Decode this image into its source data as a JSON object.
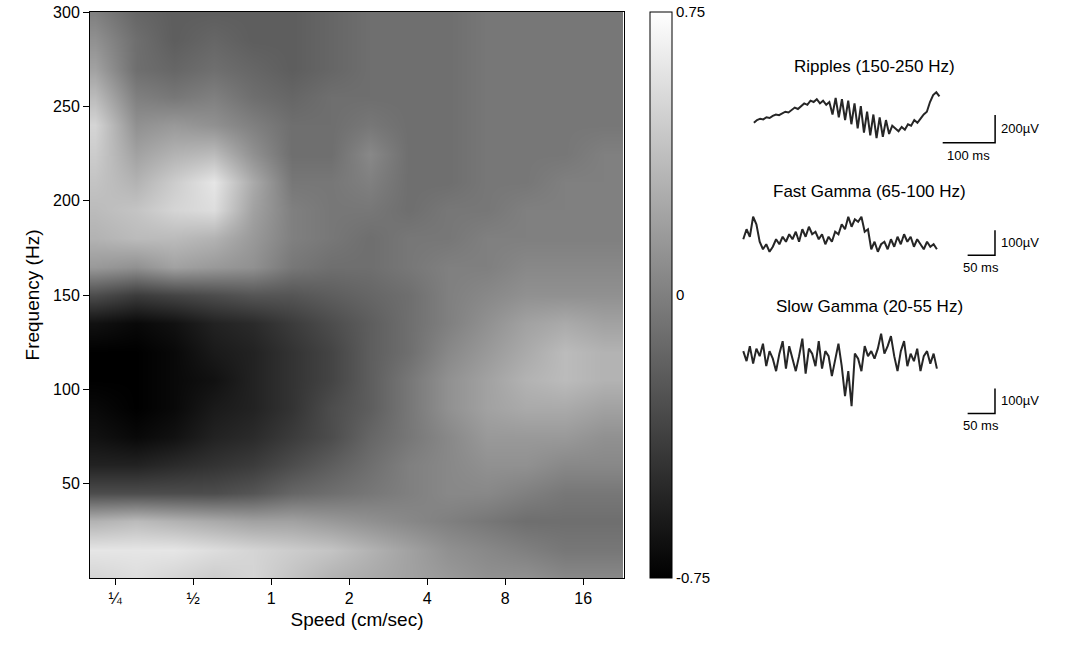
{
  "chart_data": [
    {
      "type": "heatmap",
      "x_label": "Speed (cm/sec)",
      "y_label": "Frequency (Hz)",
      "log": "x",
      "grid": false,
      "xlim": [
        0.2,
        23
      ],
      "xticks": [
        {
          "value": 0.25,
          "label": "¼"
        },
        {
          "value": 0.5,
          "label": "½"
        },
        1,
        2,
        4,
        8,
        16
      ],
      "ylim": [
        0,
        300
      ],
      "yticks": [
        50,
        100,
        150,
        200,
        250,
        300
      ],
      "zlim": [
        -0.75,
        0.75
      ],
      "zticks": [
        -0.75,
        0,
        0.75
      ],
      "x": [
        0.21,
        0.3,
        0.42,
        0.6,
        0.85,
        1.2,
        1.7,
        2.4,
        3.4,
        4.8,
        6.8,
        9.6,
        13.6,
        19.2
      ],
      "y": [
        0,
        15,
        30,
        45,
        60,
        75,
        90,
        105,
        120,
        135,
        150,
        165,
        180,
        195,
        210,
        225,
        240,
        255,
        270,
        285,
        300
      ],
      "z": [
        [
          0.5,
          0.55,
          0.5,
          0.45,
          0.5,
          0.4,
          0.3,
          0.25,
          0.2,
          0.15,
          0.1,
          0.1,
          0.05,
          0.05
        ],
        [
          0.6,
          0.6,
          0.6,
          0.55,
          0.5,
          0.45,
          0.4,
          0.3,
          0.2,
          0.1,
          0.05,
          0,
          -0.05,
          -0.05
        ],
        [
          0.3,
          0.35,
          0.3,
          0.25,
          0.2,
          0.2,
          0.15,
          0.1,
          0.05,
          0,
          -0.05,
          -0.1,
          -0.1,
          -0.1
        ],
        [
          -0.3,
          -0.3,
          -0.3,
          -0.3,
          -0.25,
          -0.15,
          -0.1,
          -0.05,
          0,
          0.05,
          0.05,
          0,
          -0.05,
          -0.05
        ],
        [
          -0.55,
          -0.55,
          -0.5,
          -0.45,
          -0.4,
          -0.3,
          -0.2,
          -0.1,
          0,
          0.05,
          0.1,
          0.1,
          0.05,
          0.05
        ],
        [
          -0.65,
          -0.7,
          -0.65,
          -0.55,
          -0.5,
          -0.4,
          -0.3,
          -0.15,
          -0.05,
          0.05,
          0.15,
          0.15,
          0.15,
          0.1
        ],
        [
          -0.7,
          -0.75,
          -0.7,
          -0.6,
          -0.55,
          -0.45,
          -0.3,
          -0.2,
          -0.05,
          0.1,
          0.2,
          0.25,
          0.25,
          0.2
        ],
        [
          -0.75,
          -0.75,
          -0.7,
          -0.65,
          -0.55,
          -0.45,
          -0.35,
          -0.2,
          -0.05,
          0.1,
          0.2,
          0.3,
          0.35,
          0.3
        ],
        [
          -0.75,
          -0.75,
          -0.7,
          -0.6,
          -0.55,
          -0.45,
          -0.35,
          -0.2,
          -0.1,
          0.05,
          0.15,
          0.25,
          0.35,
          0.3
        ],
        [
          -0.65,
          -0.7,
          -0.65,
          -0.55,
          -0.5,
          -0.4,
          -0.3,
          -0.2,
          -0.1,
          0,
          0.1,
          0.2,
          0.25,
          0.2
        ],
        [
          -0.3,
          -0.4,
          -0.35,
          -0.3,
          -0.25,
          -0.25,
          -0.2,
          -0.15,
          -0.1,
          0,
          0.05,
          0.1,
          0.1,
          0.1
        ],
        [
          0.15,
          0.1,
          0.2,
          0.15,
          0.1,
          -0.05,
          -0.1,
          -0.1,
          -0.05,
          0,
          0,
          0.05,
          0.05,
          0.05
        ],
        [
          0.3,
          0.35,
          0.35,
          0.3,
          0.15,
          0,
          -0.05,
          -0.1,
          -0.05,
          -0.05,
          0,
          0,
          0,
          0
        ],
        [
          0.35,
          0.4,
          0.5,
          0.55,
          0.2,
          0,
          -0.05,
          -0.05,
          -0.1,
          -0.05,
          -0.05,
          0,
          0,
          0
        ],
        [
          0.4,
          0.3,
          0.45,
          0.6,
          0.25,
          -0.05,
          -0.05,
          0,
          -0.1,
          -0.1,
          -0.05,
          -0.05,
          0,
          0
        ],
        [
          0.45,
          0.2,
          0.3,
          0.35,
          0.1,
          -0.1,
          -0.1,
          0.05,
          -0.1,
          -0.1,
          -0.05,
          -0.05,
          -0.05,
          0
        ],
        [
          0.5,
          0.1,
          0.15,
          0.1,
          0,
          -0.1,
          -0.1,
          -0.05,
          -0.1,
          -0.1,
          -0.05,
          -0.05,
          -0.05,
          -0.05
        ],
        [
          0.35,
          0,
          -0.05,
          0,
          -0.1,
          -0.15,
          -0.1,
          -0.1,
          -0.1,
          -0.1,
          -0.05,
          -0.05,
          -0.05,
          -0.05
        ],
        [
          0.2,
          -0.1,
          -0.15,
          -0.1,
          -0.15,
          -0.2,
          -0.15,
          -0.1,
          -0.1,
          -0.1,
          -0.05,
          -0.05,
          -0.05,
          -0.05
        ],
        [
          0.1,
          -0.1,
          -0.2,
          -0.15,
          -0.2,
          -0.2,
          -0.15,
          -0.1,
          -0.1,
          -0.1,
          -0.05,
          -0.05,
          -0.05,
          -0.05
        ],
        [
          0,
          -0.15,
          -0.2,
          -0.2,
          -0.2,
          -0.2,
          -0.15,
          -0.1,
          -0.1,
          -0.1,
          -0.05,
          -0.05,
          -0.05,
          -0.05
        ]
      ]
    },
    {
      "type": "line",
      "title": "Ripples (150-250 Hz)",
      "tick_labels": false,
      "color": "#262626",
      "scale_bar": {
        "x": 100,
        "x_label": "100 ms",
        "y": 200,
        "y_label": "200µV"
      },
      "x": [
        0,
        6,
        12,
        18,
        24,
        30,
        36,
        42,
        48,
        54,
        60,
        66,
        72,
        78,
        84,
        90,
        96,
        102,
        108,
        114,
        120,
        126,
        132,
        138,
        144,
        150,
        156,
        162,
        168,
        174,
        180,
        186,
        192,
        198,
        204,
        210,
        216,
        222,
        228,
        234,
        240,
        246,
        252,
        258,
        264,
        270,
        276,
        282,
        288,
        294,
        300,
        306,
        312,
        318,
        324,
        330,
        336,
        342,
        348,
        354
      ],
      "values": [
        -20,
        0,
        10,
        5,
        20,
        15,
        30,
        40,
        35,
        50,
        60,
        55,
        70,
        90,
        80,
        100,
        120,
        110,
        140,
        130,
        150,
        120,
        140,
        110,
        130,
        40,
        160,
        20,
        150,
        0,
        140,
        -30,
        120,
        -60,
        100,
        -90,
        60,
        -110,
        40,
        -130,
        20,
        -120,
        0,
        -100,
        -40,
        -60,
        -80,
        -50,
        -70,
        -30,
        -40,
        0,
        -20,
        10,
        40,
        60,
        130,
        180,
        200,
        170
      ]
    },
    {
      "type": "line",
      "title": "Fast Gamma (65-100 Hz)",
      "tick_labels": false,
      "color": "#262626",
      "scale_bar": {
        "x": 50,
        "x_label": "50 ms",
        "y": 100,
        "y_label": "100µV"
      },
      "x": [
        0,
        6,
        12,
        18,
        24,
        30,
        36,
        42,
        48,
        54,
        60,
        66,
        72,
        78,
        84,
        90,
        96,
        102,
        108,
        114,
        120,
        126,
        132,
        138,
        144,
        150,
        156,
        162,
        168,
        174,
        180,
        186,
        192,
        198,
        204,
        210,
        216,
        222,
        228,
        234,
        240,
        246,
        252,
        258,
        264,
        270,
        276,
        282,
        288,
        294,
        300,
        306,
        312,
        318,
        324,
        330,
        336,
        342,
        348,
        354
      ],
      "values": [
        0,
        40,
        10,
        90,
        60,
        -10,
        -40,
        -20,
        -50,
        -30,
        0,
        -20,
        10,
        -10,
        20,
        0,
        30,
        -10,
        40,
        10,
        50,
        20,
        30,
        0,
        20,
        -20,
        10,
        -10,
        30,
        20,
        60,
        40,
        90,
        50,
        80,
        70,
        90,
        30,
        40,
        -40,
        -10,
        -50,
        -20,
        -10,
        -40,
        0,
        -30,
        10,
        -20,
        20,
        -10,
        10,
        -30,
        0,
        -20,
        -40,
        -10,
        -30,
        -20,
        -40
      ]
    },
    {
      "type": "line",
      "title": "Slow Gamma (20-55 Hz)",
      "tick_labels": false,
      "color": "#262626",
      "scale_bar": {
        "x": 50,
        "x_label": "50 ms",
        "y": 100,
        "y_label": "100µV"
      },
      "x": [
        0,
        6,
        12,
        18,
        24,
        30,
        36,
        42,
        48,
        54,
        60,
        66,
        72,
        78,
        84,
        90,
        96,
        102,
        108,
        114,
        120,
        126,
        132,
        138,
        144,
        150,
        156,
        162,
        168,
        174,
        180,
        186,
        192,
        198,
        204,
        210,
        216,
        222,
        228,
        234,
        240,
        246,
        252,
        258,
        264,
        270,
        276,
        282,
        288,
        294,
        300,
        306,
        312,
        318,
        324,
        330,
        336,
        342,
        348,
        354
      ],
      "values": [
        40,
        0,
        60,
        -10,
        50,
        20,
        70,
        -20,
        40,
        10,
        -40,
        30,
        80,
        -30,
        60,
        10,
        -40,
        20,
        90,
        -50,
        50,
        30,
        -20,
        80,
        -30,
        40,
        20,
        -60,
        10,
        70,
        -20,
        -140,
        -40,
        -180,
        30,
        10,
        -40,
        60,
        20,
        40,
        10,
        50,
        110,
        30,
        60,
        100,
        20,
        -40,
        40,
        80,
        -20,
        30,
        0,
        50,
        -40,
        20,
        40,
        -10,
        30,
        -30
      ]
    }
  ]
}
